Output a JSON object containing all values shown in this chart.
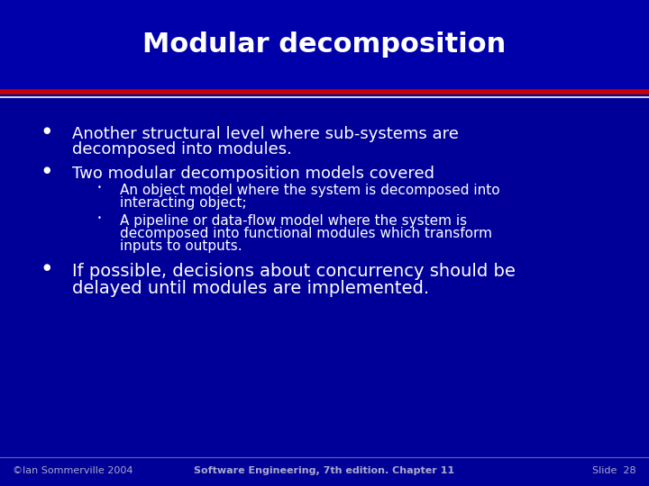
{
  "title": "Modular decomposition",
  "bg_header": "#0000aa",
  "bg_body": "#000099",
  "title_color": "#ffffff",
  "title_fontsize": 22,
  "header_line_red": "#cc0000",
  "header_line_white": "#ffffff",
  "text_color": "#ffffff",
  "footer_color": "#aaaacc",
  "bullet1_line1": "Another structural level where sub-systems are",
  "bullet1_line2": "decomposed into modules.",
  "bullet2": "Two modular decomposition models covered",
  "sub1_line1": "An object model where the system is decomposed into",
  "sub1_line2": "interacting object;",
  "sub2_line1": "A pipeline or data-flow model where the system is",
  "sub2_line2": "decomposed into functional modules which transform",
  "sub2_line3": "inputs to outputs.",
  "bullet3_line1": "If possible, decisions about concurrency should be",
  "bullet3_line2": "delayed until modules are implemented.",
  "footer_left": "©Ian Sommerville 2004",
  "footer_center": "Software Engineering, 7th edition. Chapter 11",
  "footer_right": "Slide  28",
  "main_fs": 13,
  "sub_fs": 11,
  "footer_fs": 8
}
